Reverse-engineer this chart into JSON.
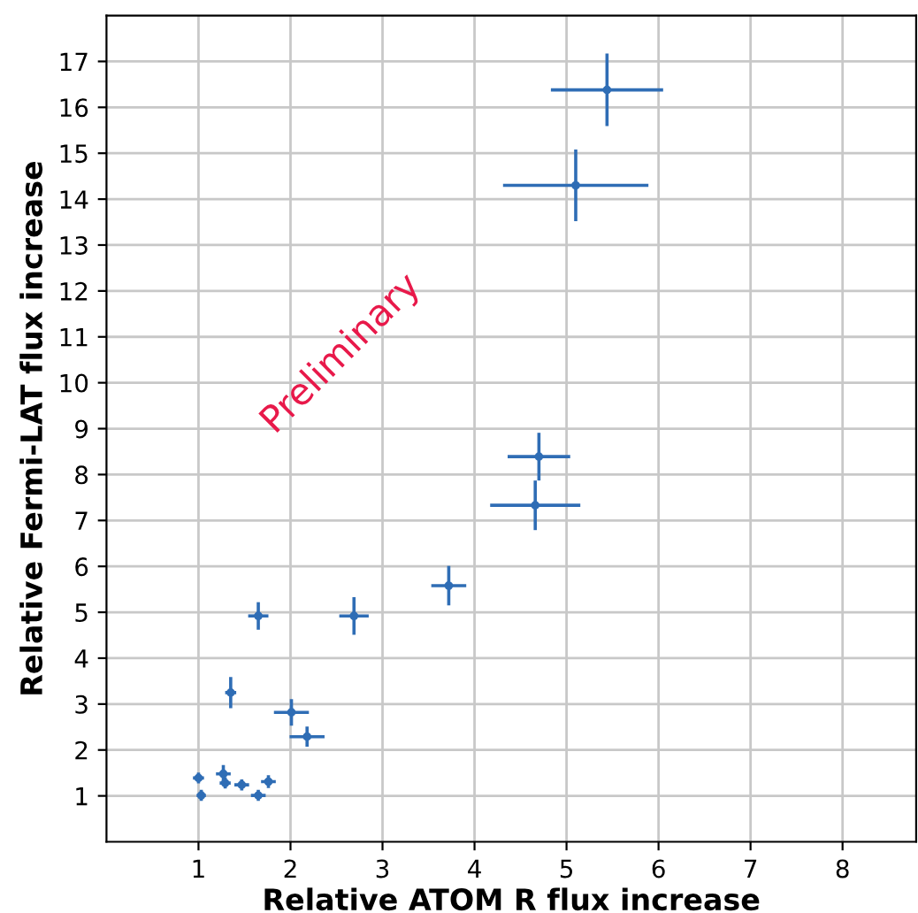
{
  "chart_data": {
    "type": "scatter",
    "xlabel": "Relative ATOM R flux increase",
    "ylabel": "Relative Fermi-LAT flux increase",
    "x": [
      4.7,
      4.66,
      3.72,
      2.69,
      1.65,
      1.35,
      2.01,
      2.18,
      1.0,
      1.03,
      1.27,
      1.29,
      1.47,
      1.65,
      1.76,
      5.44,
      5.1
    ],
    "series": [
      {
        "color": "#2f6db5",
        "values": [
          8.39,
          7.33,
          5.58,
          4.92,
          4.92,
          3.25,
          2.82,
          2.29,
          1.39,
          1.01,
          1.48,
          1.28,
          1.24,
          1.01,
          1.31,
          16.38,
          14.3
        ],
        "errors": [
          0.52,
          0.54,
          0.43,
          0.41,
          0.3,
          0.34,
          0.29,
          0.22,
          0.12,
          0.12,
          0.19,
          0.12,
          0.12,
          0.12,
          0.14,
          0.79,
          0.78
        ],
        "xerrors": [
          0.34,
          0.49,
          0.19,
          0.16,
          0.11,
          0.06,
          0.19,
          0.19,
          0.06,
          0.05,
          0.08,
          0.06,
          0.08,
          0.08,
          0.08,
          0.61,
          0.79
        ]
      }
    ],
    "xlim": [
      0,
      8.8
    ],
    "ylim": [
      0,
      18
    ],
    "xticks": [
      1,
      2,
      3,
      4,
      5,
      6,
      7,
      8
    ],
    "yticks": [
      1,
      2,
      3,
      4,
      5,
      6,
      7,
      8,
      9,
      10,
      11,
      12,
      13,
      14,
      15,
      16,
      17
    ],
    "annotations": [
      "Preliminary"
    ],
    "grid": true,
    "marker": "circle"
  }
}
